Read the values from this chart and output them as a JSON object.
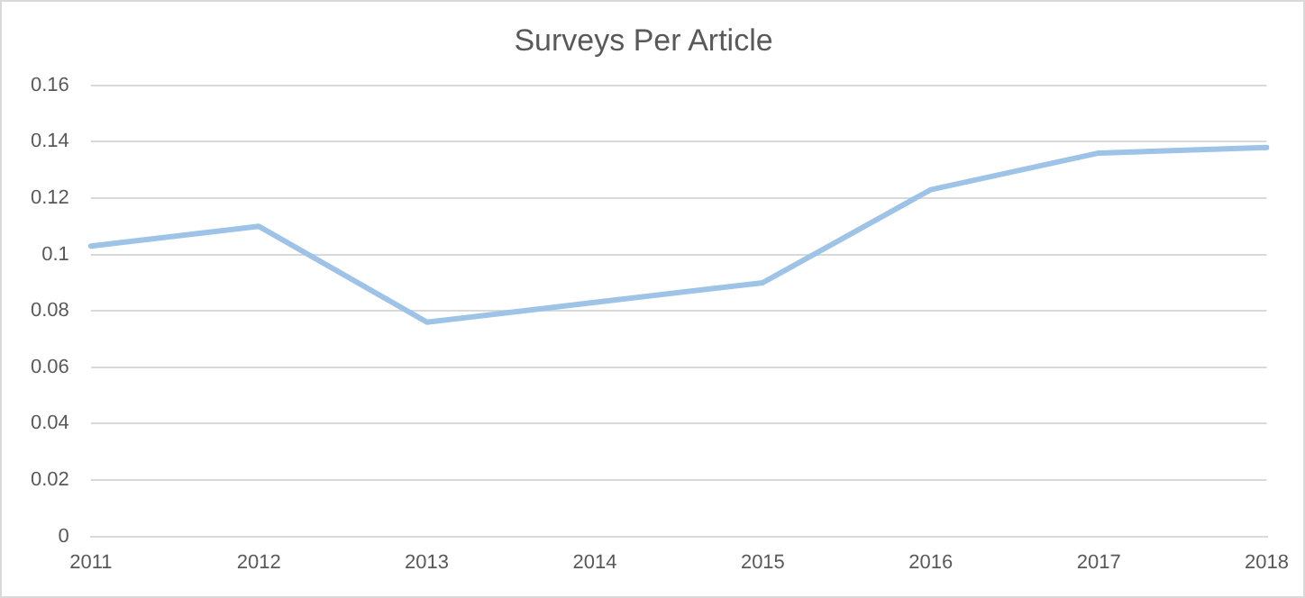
{
  "chart_data": {
    "type": "line",
    "title": "Surveys Per Article",
    "categories": [
      "2011",
      "2012",
      "2013",
      "2014",
      "2015",
      "2016",
      "2017",
      "2018"
    ],
    "series": [
      {
        "color": "#9dc3e6",
        "values": [
          0.103,
          0.11,
          0.076,
          0.083,
          0.09,
          0.123,
          0.136,
          0.138
        ]
      }
    ],
    "ylim": [
      0,
      0.16
    ],
    "yticks": [
      0,
      0.02,
      0.04,
      0.06,
      0.08,
      0.1,
      0.12,
      0.14,
      0.16
    ],
    "grid": "y",
    "legend": false,
    "marker": "none",
    "line_style": "solid"
  }
}
